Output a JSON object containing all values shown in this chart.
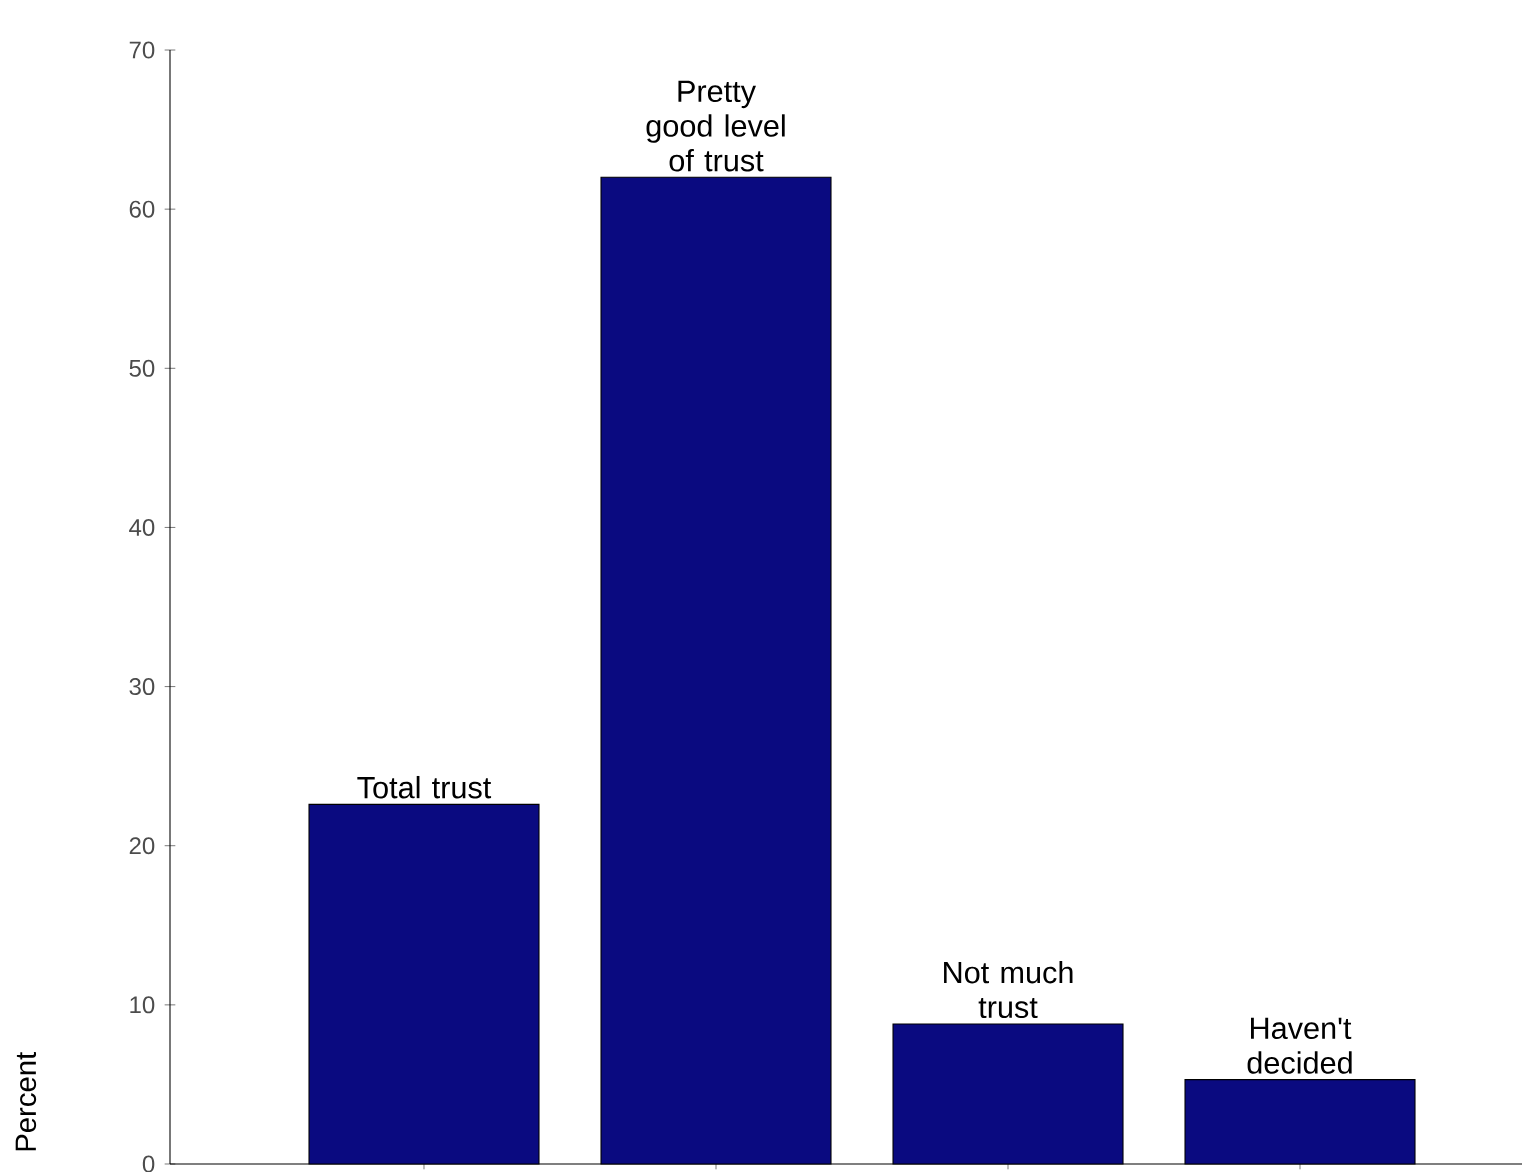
{
  "chart_data": {
    "type": "bar",
    "ylabel": "Percent",
    "categories": [
      "Total trust",
      "Pretty good level of trust",
      "Not much trust",
      "Haven't decided"
    ],
    "values": [
      22.6,
      62,
      8.8,
      5.3
    ],
    "color": "#0a0a80",
    "ylim": [
      0,
      70
    ],
    "yticks": [
      0,
      10,
      20,
      30,
      40,
      50,
      60,
      70
    ],
    "grid": false
  }
}
